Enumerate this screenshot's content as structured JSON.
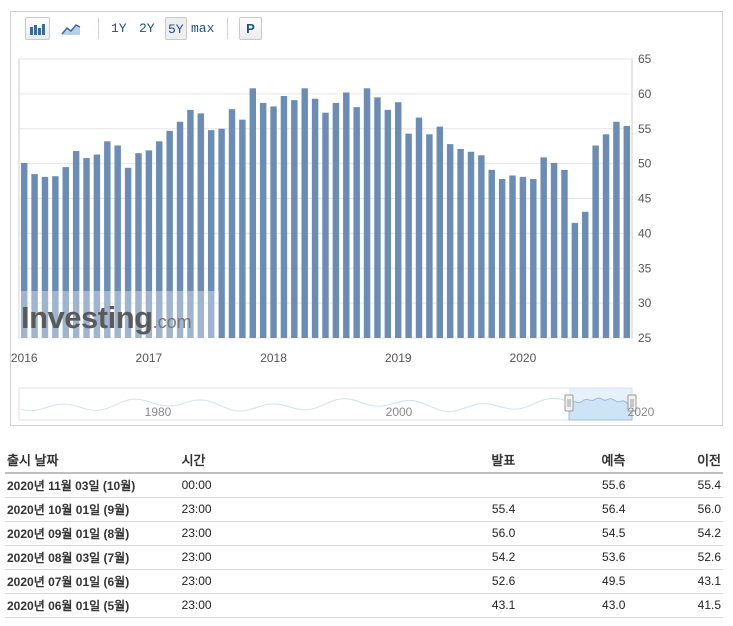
{
  "toolbar": {
    "buttons": [
      {
        "label": "1Y"
      },
      {
        "label": "2Y"
      },
      {
        "label": "5Y"
      },
      {
        "label": "max"
      },
      {
        "label": "P"
      }
    ],
    "active": "5Y"
  },
  "colors": {
    "bar": "#6b8db5",
    "grid": "#e6e6e6",
    "navigator_fill": "#cde3f6",
    "navigator_line": "#9bbde0",
    "red": "#c00000",
    "teal": "#0a7aa8"
  },
  "watermark": {
    "brand": "Investing",
    "suffix": ".com"
  },
  "chart_data": {
    "type": "bar",
    "ylim": [
      25,
      65
    ],
    "y_ticks": [
      "25",
      "30",
      "35",
      "40",
      "45",
      "50",
      "55",
      "60",
      "65"
    ],
    "x_ticks": [
      "2016",
      "2017",
      "2018",
      "2019",
      "2020"
    ],
    "x_tick_positions": [
      0,
      12,
      24,
      36,
      48
    ],
    "start": "2015-11",
    "values": [
      50.1,
      48.5,
      48.1,
      48.2,
      49.5,
      51.8,
      50.8,
      51.3,
      53.2,
      52.6,
      49.4,
      51.5,
      51.9,
      53.2,
      54.7,
      56.0,
      57.7,
      57.2,
      54.8,
      55.0,
      57.8,
      56.3,
      60.8,
      58.7,
      58.2,
      59.7,
      59.1,
      60.8,
      59.3,
      57.3,
      58.7,
      60.2,
      58.1,
      60.8,
      59.5,
      57.7,
      58.8,
      54.3,
      56.6,
      54.2,
      55.3,
      52.8,
      52.1,
      51.7,
      51.2,
      49.1,
      47.8,
      48.3,
      48.1,
      47.8,
      50.9,
      50.1,
      49.1,
      41.5,
      43.1,
      52.6,
      54.2,
      56.0,
      55.4
    ],
    "navigator": {
      "labels": [
        "1980",
        "2000",
        "2020"
      ]
    }
  },
  "table": {
    "headers": [
      "출시 날짜",
      "시간",
      "발표",
      "예측",
      "이전"
    ],
    "rows": [
      {
        "date": "2020년 11월 03일 (10월)",
        "time": "00:00",
        "actual": "",
        "actual_color": "",
        "forecast": "55.6",
        "previous": "55.4",
        "previous_color": "teal"
      },
      {
        "date": "2020년 10월 01일 (9월)",
        "time": "23:00",
        "actual": "55.4",
        "actual_color": "teal",
        "forecast": "56.4",
        "previous": "56.0",
        "previous_color": ""
      },
      {
        "date": "2020년 09월 01일 (8월)",
        "time": "23:00",
        "actual": "56.0",
        "actual_color": "red",
        "forecast": "54.5",
        "previous": "54.2",
        "previous_color": ""
      },
      {
        "date": "2020년 08월 03일 (7월)",
        "time": "23:00",
        "actual": "54.2",
        "actual_color": "red",
        "forecast": "53.6",
        "previous": "52.6",
        "previous_color": ""
      },
      {
        "date": "2020년 07월 01일 (6월)",
        "time": "23:00",
        "actual": "52.6",
        "actual_color": "red",
        "forecast": "49.5",
        "previous": "43.1",
        "previous_color": ""
      },
      {
        "date": "2020년 06월 01일 (5월)",
        "time": "23:00",
        "actual": "43.1",
        "actual_color": "red",
        "forecast": "43.0",
        "previous": "41.5",
        "previous_color": ""
      }
    ]
  }
}
